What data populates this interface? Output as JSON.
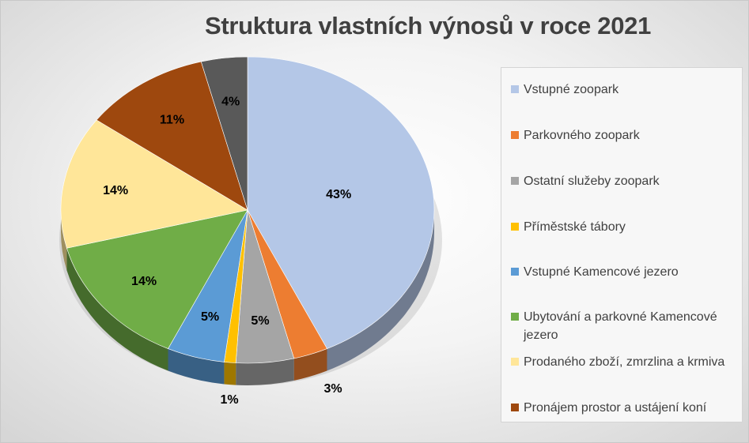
{
  "chart_data": {
    "type": "pie",
    "style": "3d",
    "title": "Struktura vlastních výnosů v roce 2021",
    "legend_position": "right",
    "slices": [
      {
        "name": "Vstupné zoopark",
        "value": 43,
        "label": "43%",
        "color": "#b4c7e7"
      },
      {
        "name": "Parkovného zoopark",
        "value": 3,
        "label": "3%",
        "color": "#ed7d31"
      },
      {
        "name": "Ostatní služeby zoopark",
        "value": 5,
        "label": "5%",
        "color": "#a5a5a5"
      },
      {
        "name": "Příměstské tábory",
        "value": 1,
        "label": "1%",
        "color": "#ffc000"
      },
      {
        "name": "Vstupné Kamencové jezero",
        "value": 5,
        "label": "5%",
        "color": "#5b9bd5"
      },
      {
        "name": "Ubytování a parkovné Kamencové jezero",
        "value": 14,
        "label": "14%",
        "color": "#70ad47"
      },
      {
        "name": "Prodaného zboží, zmrzlina a krmiva",
        "value": 14,
        "label": "14%",
        "color": "#ffe699"
      },
      {
        "name": "Pronájem prostor a ustájení koní",
        "value": 11,
        "label": "11%",
        "color": "#9e480e"
      },
      {
        "name": "",
        "value": 4,
        "label": "4%",
        "color": "#595959"
      }
    ]
  }
}
